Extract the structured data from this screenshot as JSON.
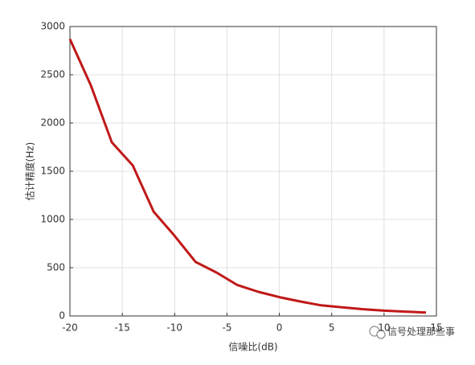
{
  "chart_data": {
    "type": "line",
    "x_label": "信噪比(dB)",
    "y_label": "估计精度(Hz)",
    "x": [
      -20,
      -18,
      -16,
      -14,
      -12,
      -10,
      -8,
      -6,
      -4,
      -2,
      0,
      2,
      4,
      6,
      8,
      10,
      12,
      14
    ],
    "series": [
      {
        "name": "估计精度",
        "color": "#c01818",
        "values": [
          2870,
          2390,
          1800,
          1560,
          1080,
          830,
          560,
          450,
          320,
          250,
          195,
          150,
          110,
          90,
          70,
          55,
          45,
          35
        ]
      }
    ],
    "xlim": [
      -20,
      15
    ],
    "xticks": [
      -20,
      -15,
      -10,
      -5,
      0,
      5,
      10,
      15
    ],
    "ylim": [
      0,
      3000
    ],
    "yticks": [
      0,
      500,
      1000,
      1500,
      2000,
      2500,
      3000
    ],
    "grid": true,
    "annotation": "信号处理那些事"
  }
}
